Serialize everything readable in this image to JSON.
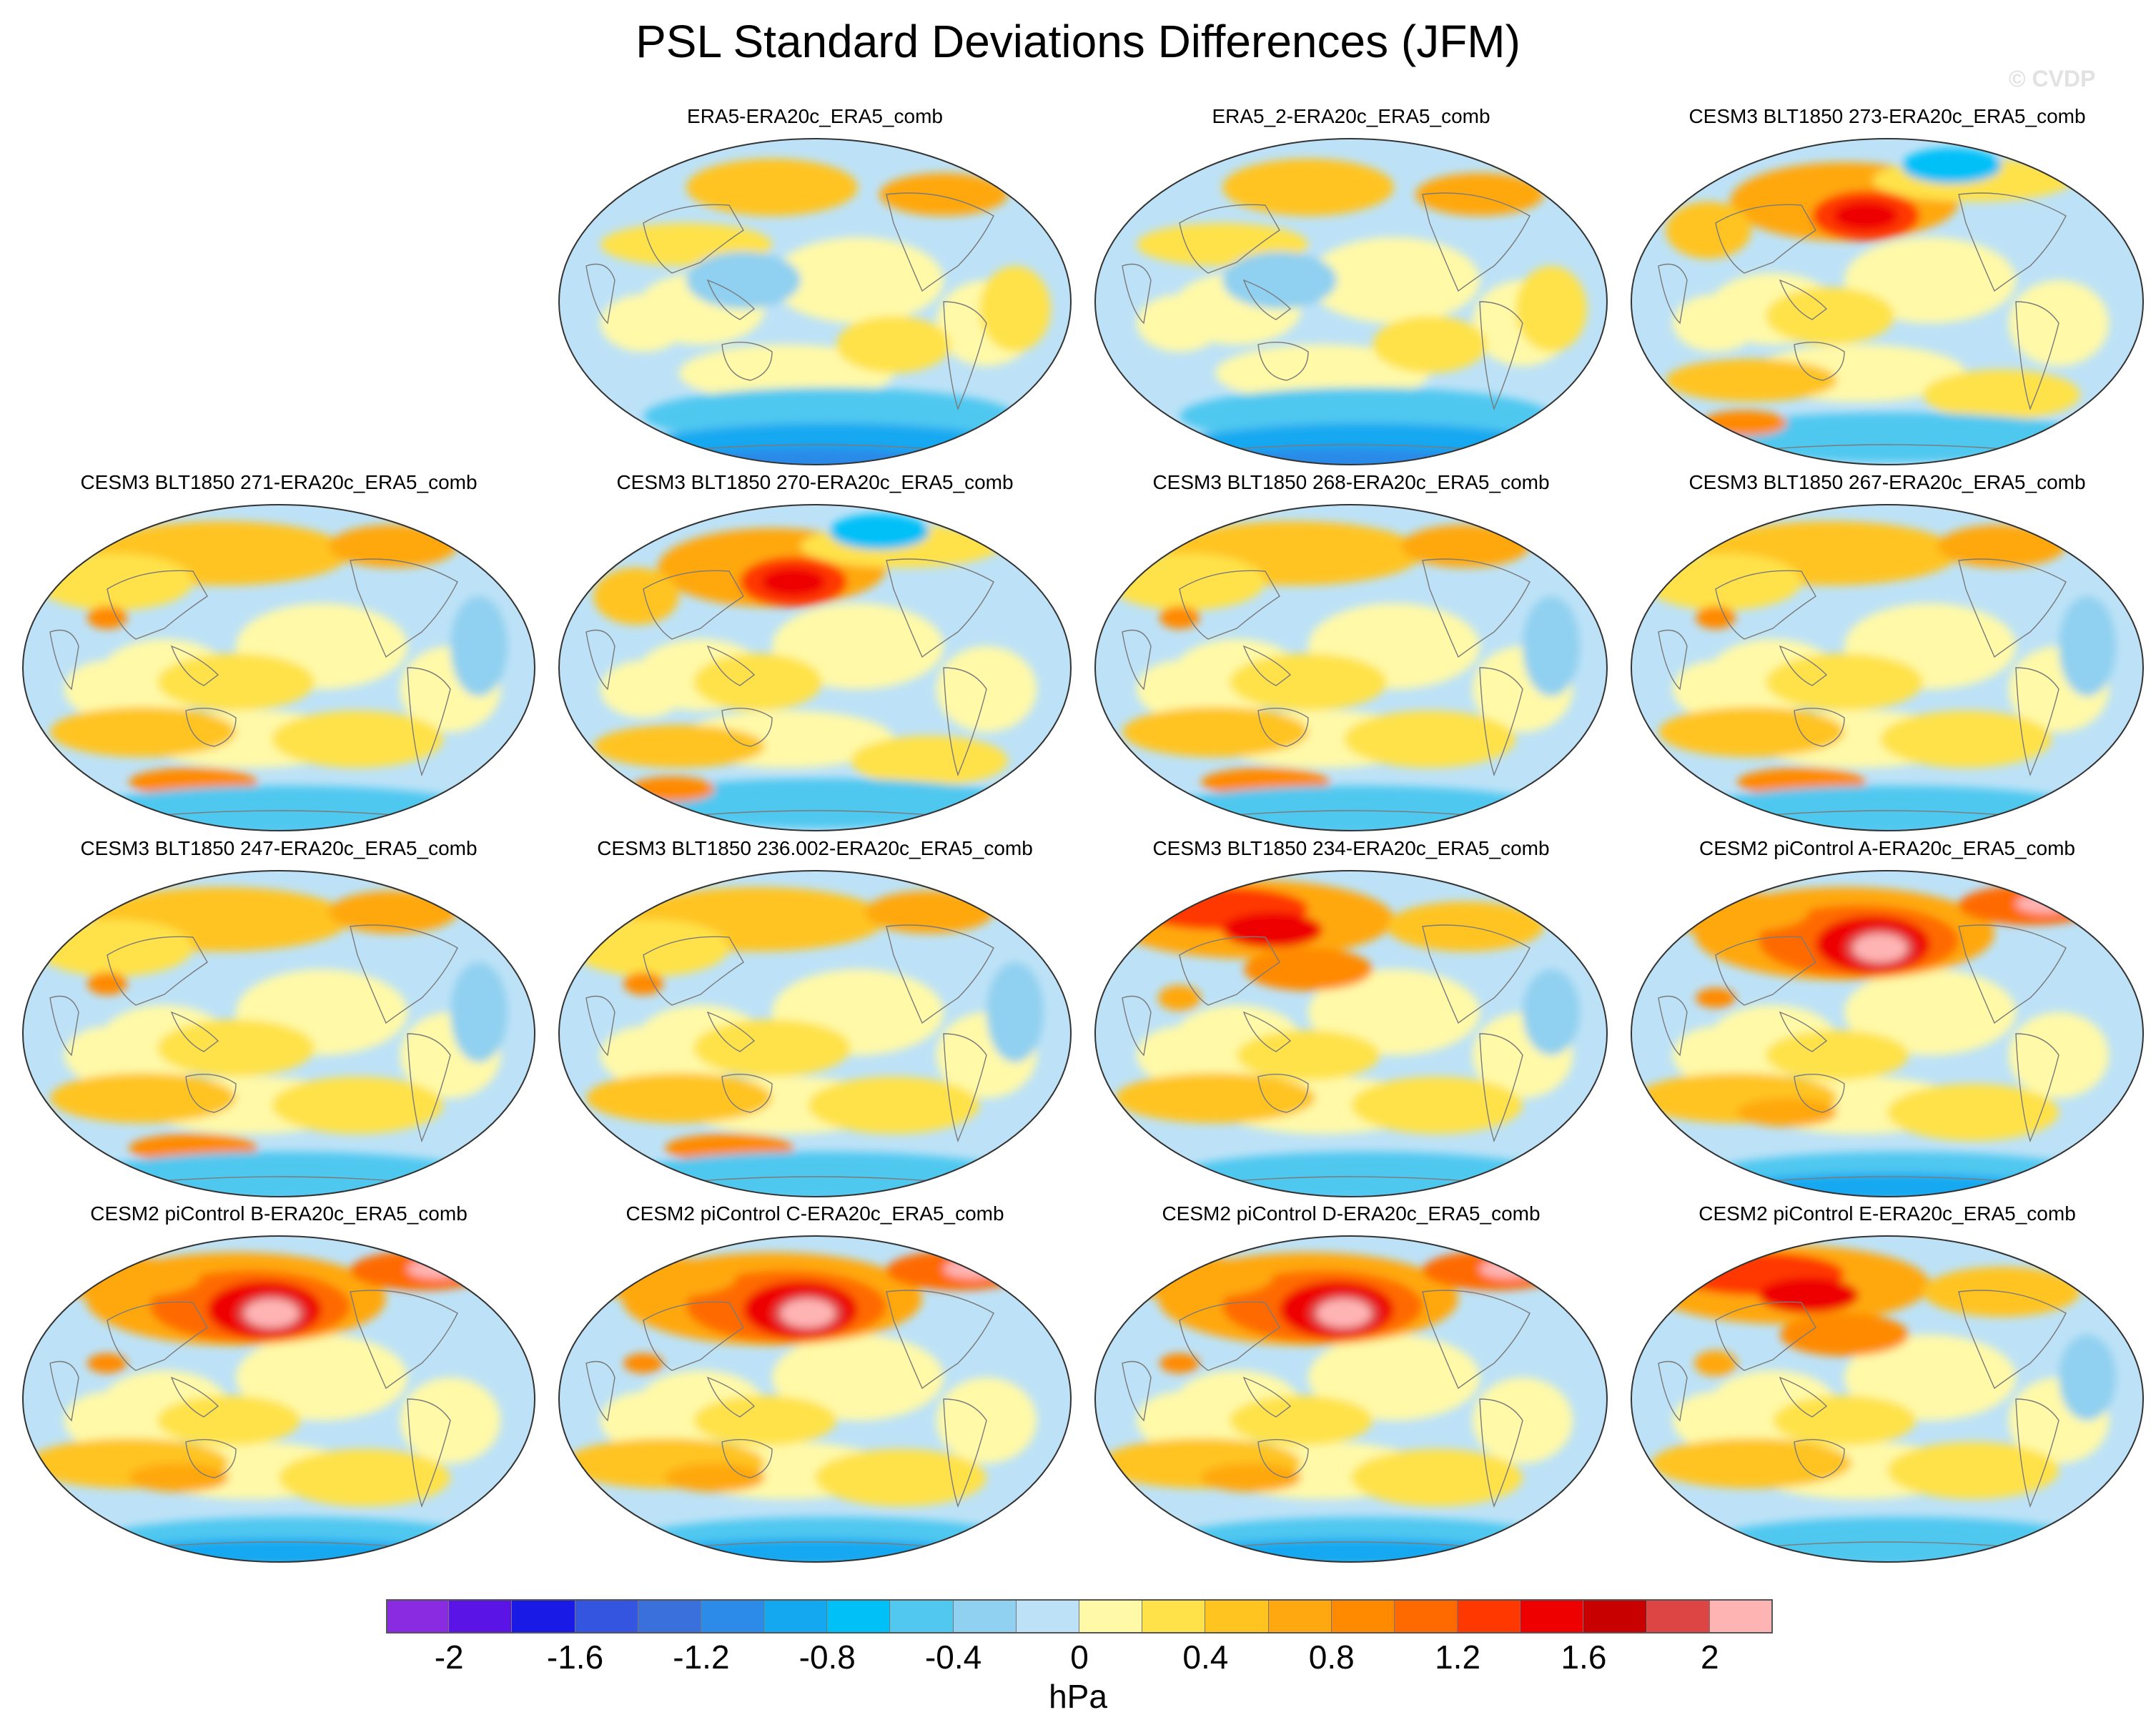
{
  "figure": {
    "title": "PSL Standard Deviations Differences (JFM)",
    "watermark": "© CVDP"
  },
  "panels": [
    {
      "title": "ERA5-ERA20c_ERA5_comb",
      "pattern": "weak-obs"
    },
    {
      "title": "ERA5_2-ERA20c_ERA5_comb",
      "pattern": "weak-obs"
    },
    {
      "title": "CESM3 BLT1850 273-ERA20c_ERA5_comb",
      "pattern": "pacific-high"
    },
    {
      "title": "CESM3 BLT1850 271-ERA20c_ERA5_comb",
      "pattern": "moderate"
    },
    {
      "title": "CESM3 BLT1850 270-ERA20c_ERA5_comb",
      "pattern": "pacific-high"
    },
    {
      "title": "CESM3 BLT1850 268-ERA20c_ERA5_comb",
      "pattern": "moderate"
    },
    {
      "title": "CESM3 BLT1850 267-ERA20c_ERA5_comb",
      "pattern": "moderate"
    },
    {
      "title": "CESM3 BLT1850 247-ERA20c_ERA5_comb",
      "pattern": "moderate"
    },
    {
      "title": "CESM3 BLT1850 236.002-ERA20c_ERA5_comb",
      "pattern": "moderate"
    },
    {
      "title": "CESM3 BLT1850 234-ERA20c_ERA5_comb",
      "pattern": "strong"
    },
    {
      "title": "CESM2 piControl A-ERA20c_ERA5_comb",
      "pattern": "very-strong"
    },
    {
      "title": "CESM2 piControl B-ERA20c_ERA5_comb",
      "pattern": "very-strong"
    },
    {
      "title": "CESM2 piControl C-ERA20c_ERA5_comb",
      "pattern": "very-strong"
    },
    {
      "title": "CESM2 piControl D-ERA20c_ERA5_comb",
      "pattern": "very-strong"
    },
    {
      "title": "CESM2 piControl E-ERA20c_ERA5_comb",
      "pattern": "strong"
    }
  ],
  "colorbar": {
    "units": "hPa",
    "levels": [
      -2.2,
      -2,
      -1.8,
      -1.6,
      -1.4,
      -1.2,
      -1,
      -0.8,
      -0.6,
      -0.4,
      -0.2,
      0,
      0.2,
      0.4,
      0.6,
      0.8,
      1,
      1.2,
      1.4,
      1.6,
      1.8,
      2,
      2.2
    ],
    "tick_labels": [
      "-2",
      "-1.6",
      "-1.2",
      "-0.8",
      "-0.4",
      "0",
      "0.4",
      "0.8",
      "1.2",
      "1.6",
      "2"
    ],
    "tick_values": [
      -2,
      -1.6,
      -1.2,
      -0.8,
      -0.4,
      0,
      0.4,
      0.8,
      1.2,
      1.6,
      2
    ],
    "colors": [
      "#8a2be2",
      "#5a14e6",
      "#1a1ae6",
      "#3355e0",
      "#3a70dc",
      "#2c8ae8",
      "#14a8f0",
      "#00c0f8",
      "#50c8f0",
      "#90d0f0",
      "#bde2f7",
      "#fff9a8",
      "#ffe24a",
      "#ffc420",
      "#ffa810",
      "#ff8a00",
      "#ff6a00",
      "#ff3800",
      "#ee0000",
      "#c80000",
      "#dd4444",
      "#ffb4b4"
    ]
  }
}
